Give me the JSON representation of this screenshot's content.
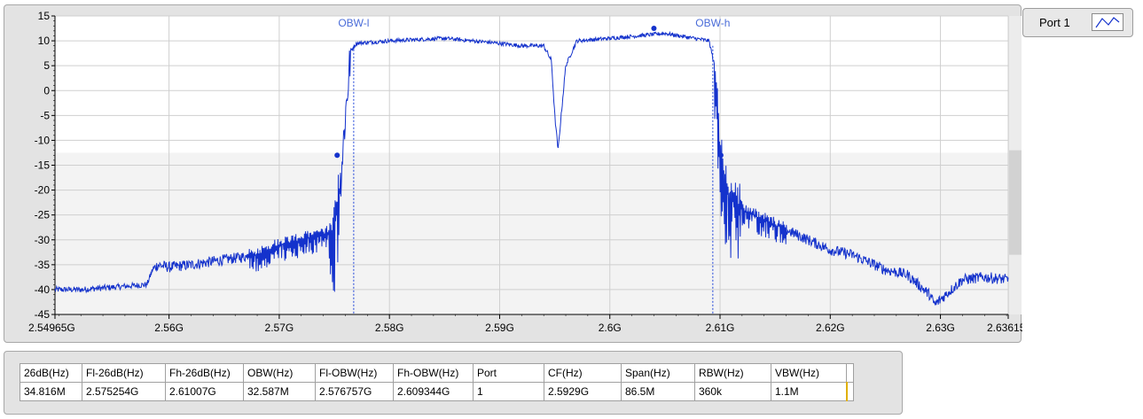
{
  "colors": {
    "trace": "#1432cc",
    "cursor": "#1a40d8",
    "cursor_label": "#4a6cd8",
    "grid": "#cfcfcf",
    "plot_bg": "#ffffff"
  },
  "legend": {
    "label": "Port 1",
    "icon": "line-plot-icon"
  },
  "chart_data": {
    "type": "line",
    "title": "",
    "xlabel": "",
    "ylabel": "",
    "xlim": [
      2.54965,
      2.63615
    ],
    "ylim": [
      -45,
      15
    ],
    "grid": true,
    "x_ticks": [
      {
        "value": 2.54965,
        "label": "2.54965G"
      },
      {
        "value": 2.56,
        "label": "2.56G"
      },
      {
        "value": 2.57,
        "label": "2.57G"
      },
      {
        "value": 2.58,
        "label": "2.58G"
      },
      {
        "value": 2.59,
        "label": "2.59G"
      },
      {
        "value": 2.6,
        "label": "2.6G"
      },
      {
        "value": 2.61,
        "label": "2.61G"
      },
      {
        "value": 2.62,
        "label": "2.62G"
      },
      {
        "value": 2.63,
        "label": "2.63G"
      },
      {
        "value": 2.63615,
        "label": "2.63615G"
      }
    ],
    "y_ticks": [
      {
        "value": 15,
        "label": "15"
      },
      {
        "value": 10,
        "label": "10"
      },
      {
        "value": 5,
        "label": "5"
      },
      {
        "value": 0,
        "label": "0"
      },
      {
        "value": -5,
        "label": "-5"
      },
      {
        "value": -10,
        "label": "-10"
      },
      {
        "value": -15,
        "label": "-15"
      },
      {
        "value": -20,
        "label": "-20"
      },
      {
        "value": -25,
        "label": "-25"
      },
      {
        "value": -30,
        "label": "-30"
      },
      {
        "value": -35,
        "label": "-35"
      },
      {
        "value": -40,
        "label": "-40"
      },
      {
        "value": -45,
        "label": "-45"
      }
    ],
    "cursors": [
      {
        "label": "OBW-l",
        "x": 2.576757
      },
      {
        "label": "OBW-h",
        "x": 2.609344
      }
    ],
    "markers": [
      {
        "x": 2.575254,
        "y": -13
      },
      {
        "x": 2.61007,
        "y": -13
      },
      {
        "x": 2.604,
        "y": 12.5
      }
    ],
    "series": [
      {
        "x": [
          2.54965,
          2.552,
          2.555,
          2.558,
          2.5585,
          2.559,
          2.56,
          2.562,
          2.565,
          2.568,
          2.57,
          2.572,
          2.574,
          2.575,
          2.5755,
          2.576,
          2.5765,
          2.577,
          2.58,
          2.585,
          2.59,
          2.592,
          2.594,
          2.5947,
          2.595,
          2.5953,
          2.596,
          2.597,
          2.6,
          2.605,
          2.609,
          2.6095,
          2.61,
          2.6105,
          2.611,
          2.612,
          2.615,
          2.618,
          2.62,
          2.622,
          2.625,
          2.627,
          2.628,
          2.629,
          2.6295,
          2.63,
          2.632,
          2.634,
          2.63615
        ],
        "y": [
          -40,
          -40,
          -39.5,
          -39,
          -36,
          -35,
          -35.5,
          -35,
          -34,
          -33,
          -31,
          -30,
          -29,
          -28,
          -20,
          -5,
          8,
          9.5,
          10,
          10.5,
          9.5,
          9,
          9,
          6,
          -5,
          -12,
          5,
          10,
          10.5,
          11.5,
          10,
          5,
          -12,
          -20,
          -22,
          -24,
          -27,
          -30,
          -32,
          -33,
          -36,
          -37,
          -39,
          -41,
          -43,
          -42,
          -38,
          -37.5,
          -38
        ],
        "noise": [
          [
            2.54965,
            2.5585,
            1.2
          ],
          [
            2.5585,
            2.5745,
            2.2
          ],
          [
            2.5745,
            2.5765,
            9
          ],
          [
            2.5765,
            2.594,
            0.8
          ],
          [
            2.596,
            2.6095,
            0.8
          ],
          [
            2.6095,
            2.612,
            8
          ],
          [
            2.612,
            2.63615,
            2.2
          ]
        ]
      }
    ]
  },
  "table": {
    "headers": [
      "26dB(Hz)",
      "Fl-26dB(Hz)",
      "Fh-26dB(Hz)",
      "OBW(Hz)",
      "Fl-OBW(Hz)",
      "Fh-OBW(Hz)",
      "Port",
      "CF(Hz)",
      "Span(Hz)",
      "RBW(Hz)",
      "VBW(Hz)"
    ],
    "rows": [
      [
        "34.816M",
        "2.575254G",
        "2.61007G",
        "32.587M",
        "2.576757G",
        "2.609344G",
        "1",
        "2.5929G",
        "86.5M",
        "360k",
        "1.1M"
      ]
    ]
  }
}
